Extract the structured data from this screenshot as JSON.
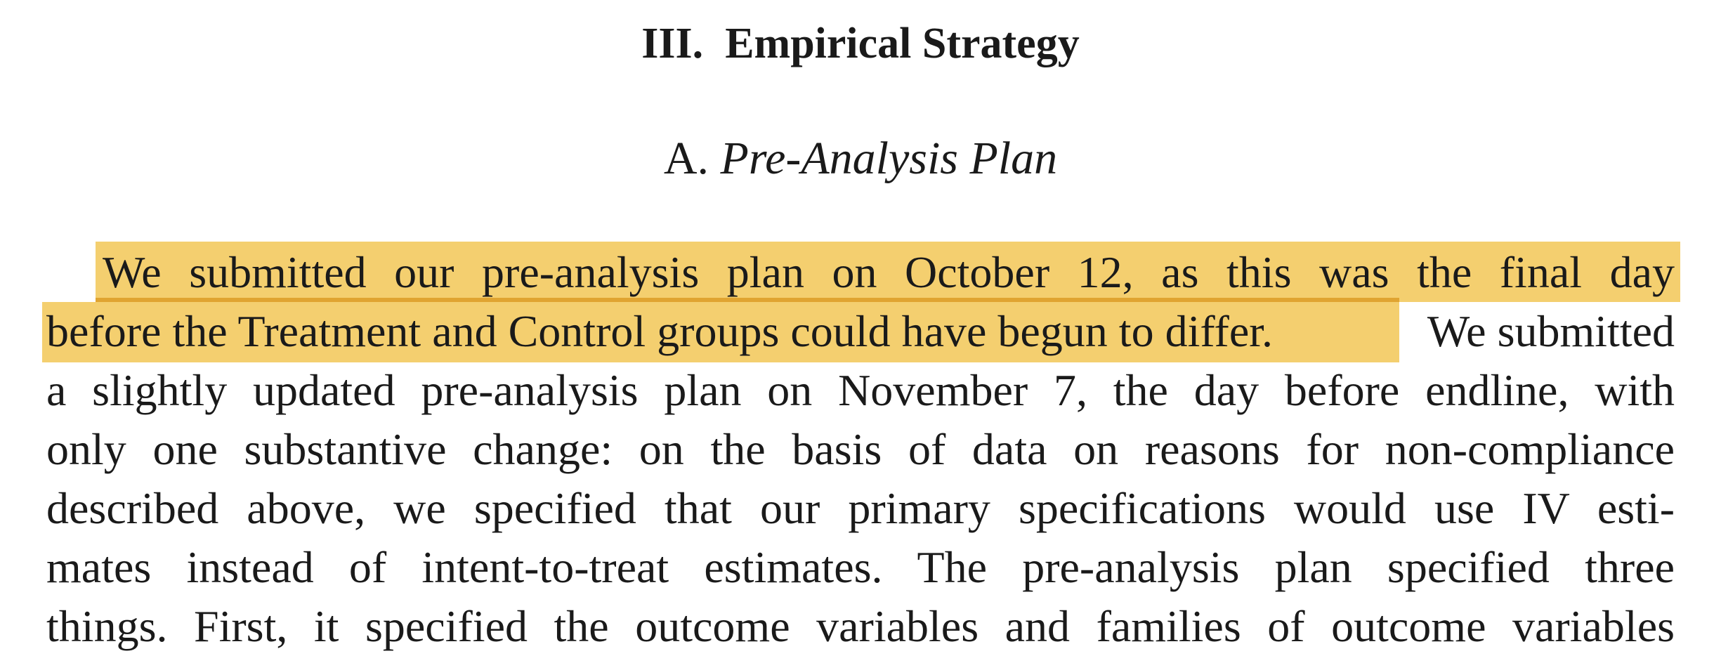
{
  "section": {
    "number": "III.",
    "title": "Empirical Strategy"
  },
  "subsection": {
    "letter": "A.",
    "title": "Pre-Analysis Plan"
  },
  "paragraph": {
    "lines": [
      "We submitted our pre-analysis plan on October 12, as this was the final day",
      "before the Treatment and Control groups could have begun to differ.",
      "We submitted",
      "a slightly updated pre-analysis plan on November 7, the day before endline, with",
      "only one substantive change: on the basis of data on reasons for non-compliance",
      "described above, we specified that our primary specifications would use IV esti-",
      "mates instead of intent-to-treat estimates. The pre-analysis plan specified three",
      "things. First, it specified the outcome variables and families of outcome variables"
    ]
  },
  "highlight": {
    "color": "#f4cf6f",
    "underline_color": "#e0a431"
  }
}
